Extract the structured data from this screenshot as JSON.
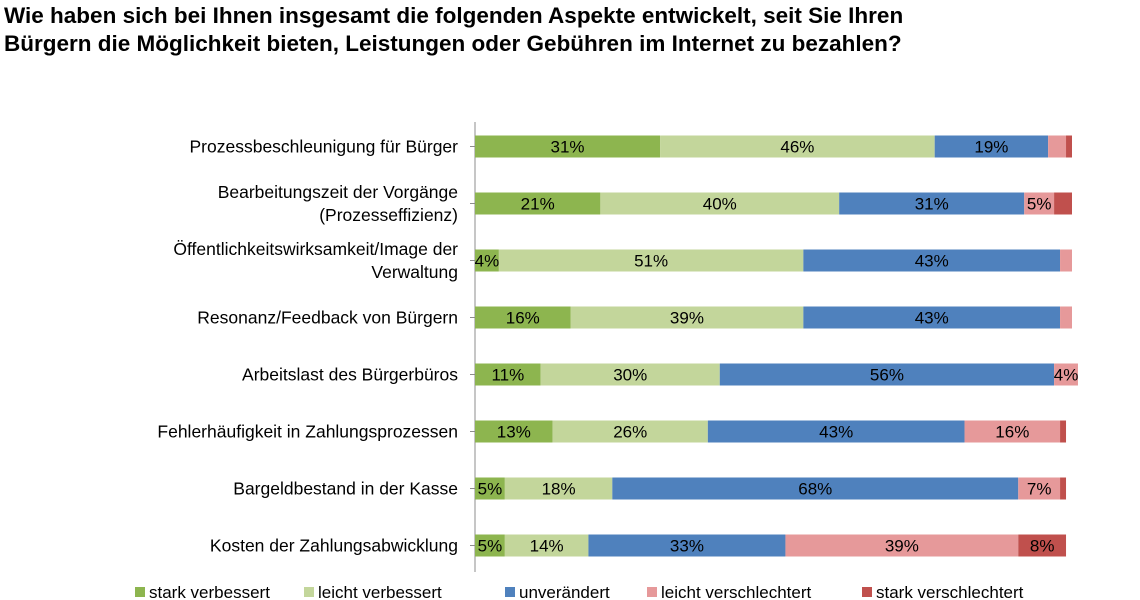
{
  "title_lines": [
    "Wie haben sich bei Ihnen insgesamt die folgenden Aspekte entwickelt, seit Sie Ihren",
    "Bürgern die Möglichkeit bieten, Leistungen oder Gebühren im Internet zu bezahlen?"
  ],
  "chart_data": {
    "type": "bar",
    "orientation": "horizontal",
    "stacked": true,
    "percent_stacked": true,
    "title": "Wie haben sich bei Ihnen insgesamt die folgenden Aspekte entwickelt, seit Sie Ihren Bürgern die Möglichkeit bieten, Leistungen oder Gebühren im Internet zu bezahlen?",
    "xlim": [
      0,
      100
    ],
    "grid": false,
    "legend_position": "bottom",
    "categories": [
      [
        "Prozessbeschleunigung für Bürger"
      ],
      [
        "Bearbeitungszeit der Vorgänge",
        "(Prozesseffizienz)"
      ],
      [
        "Öffentlichkeitswirksamkeit/Image der",
        "Verwaltung"
      ],
      [
        "Resonanz/Feedback von Bürgern"
      ],
      [
        "Arbeitslast des Bürgerbüros"
      ],
      [
        "Fehlerhäufigkeit in Zahlungsprozessen"
      ],
      [
        "Bargeldbestand in der Kasse"
      ],
      [
        "Kosten der Zahlungsabwicklung"
      ]
    ],
    "series": [
      {
        "name": "stark verbessert",
        "color": "#8db54f",
        "values": [
          31,
          21,
          4,
          16,
          11,
          13,
          5,
          5
        ],
        "labels": [
          "31%",
          "21%",
          "4%",
          "16%",
          "11%",
          "13%",
          "5%",
          "5%"
        ]
      },
      {
        "name": "leicht verbessert",
        "color": "#c3d69b",
        "values": [
          46,
          40,
          51,
          39,
          30,
          26,
          18,
          14
        ],
        "labels": [
          "46%",
          "40%",
          "51%",
          "39%",
          "30%",
          "26%",
          "18%",
          "14%"
        ]
      },
      {
        "name": "unverändert",
        "color": "#4f81bd",
        "values": [
          19,
          31,
          43,
          43,
          56,
          43,
          68,
          33
        ],
        "labels": [
          "19%",
          "31%",
          "43%",
          "43%",
          "56%",
          "43%",
          "68%",
          "33%"
        ]
      },
      {
        "name": "leicht verschlechtert",
        "color": "#e6999a",
        "values": [
          3,
          5,
          2,
          2,
          4,
          16,
          7,
          39
        ],
        "labels": [
          "",
          "5%",
          "",
          "",
          "4%",
          "16%",
          "7%",
          "39%"
        ]
      },
      {
        "name": "stark verschlechtert",
        "color": "#c0504d",
        "values": [
          1,
          3,
          0,
          0,
          0,
          1,
          1,
          8
        ],
        "labels": [
          "",
          "",
          "",
          "",
          "",
          "",
          "",
          "8%"
        ]
      }
    ]
  }
}
